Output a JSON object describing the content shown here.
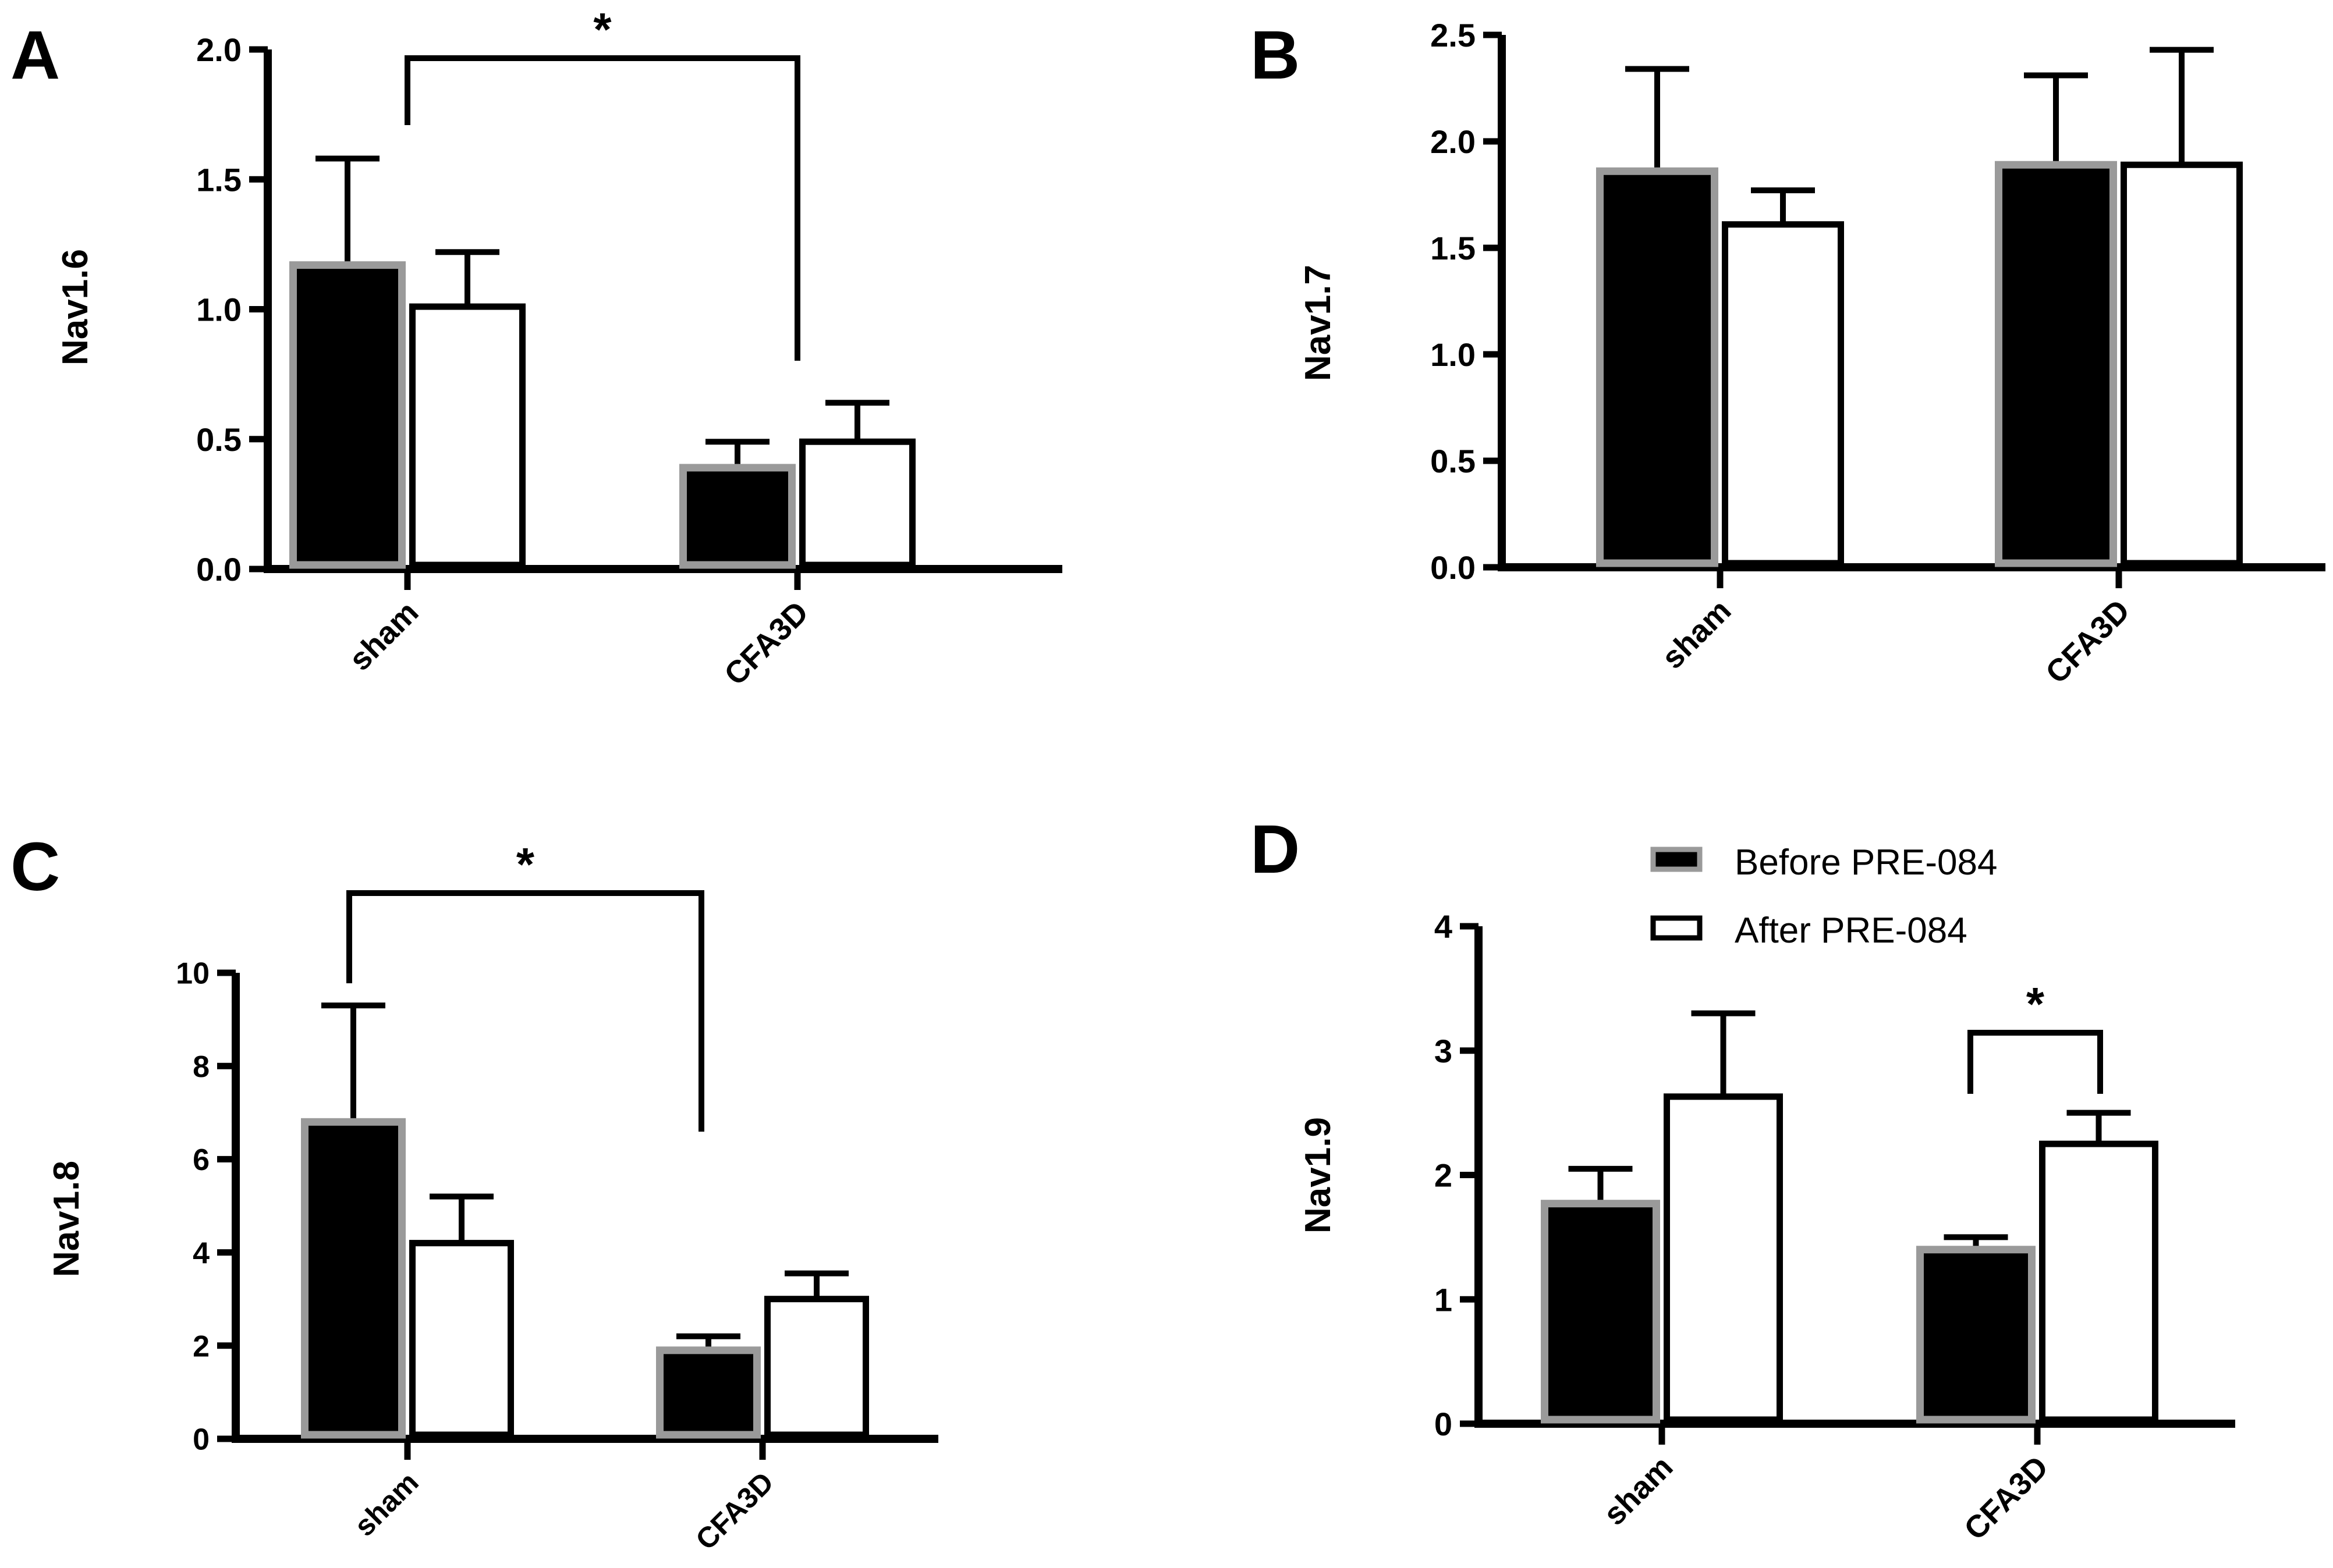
{
  "legend": {
    "before_label": "Before PRE-084",
    "after_label": "After PRE-084",
    "placement": "top, inside panel D"
  },
  "colors": {
    "before_fill": "#000000",
    "before_stroke": "#9a9a9a",
    "after_fill": "#ffffff",
    "after_stroke": "#000000",
    "axis": "#000000"
  },
  "chart_data": [
    {
      "panel": "A",
      "type": "bar",
      "ylabel": "Nav1.6",
      "categories": [
        "sham",
        "CFA3D"
      ],
      "ylim": [
        0,
        2.0
      ],
      "yticks": [
        "0.0",
        "0.5",
        "1.0",
        "1.5",
        "2.0"
      ],
      "series": [
        {
          "name": "Before PRE-084",
          "values": [
            1.17,
            0.39
          ],
          "errors": [
            0.41,
            0.1
          ]
        },
        {
          "name": "After PRE-084",
          "values": [
            1.01,
            0.49
          ],
          "errors": [
            0.21,
            0.15
          ]
        }
      ],
      "significance": [
        {
          "label": "*",
          "from": [
            "sham",
            "Before PRE-084"
          ],
          "to": [
            "CFA3D",
            "Before PRE-084"
          ]
        }
      ]
    },
    {
      "panel": "B",
      "type": "bar",
      "ylabel": "Nav1.7",
      "categories": [
        "sham",
        "CFA3D"
      ],
      "ylim": [
        0,
        2.5
      ],
      "yticks": [
        "0.0",
        "0.5",
        "1.0",
        "1.5",
        "2.0",
        "2.5"
      ],
      "series": [
        {
          "name": "Before PRE-084",
          "values": [
            1.86,
            1.89
          ],
          "errors": [
            0.48,
            0.42
          ]
        },
        {
          "name": "After PRE-084",
          "values": [
            1.61,
            1.89
          ],
          "errors": [
            0.16,
            0.54
          ]
        }
      ],
      "significance": []
    },
    {
      "panel": "C",
      "type": "bar",
      "ylabel": "Nav1.8",
      "categories": [
        "sham",
        "CFA3D"
      ],
      "ylim": [
        0,
        10
      ],
      "yticks": [
        "0",
        "2",
        "4",
        "6",
        "8",
        "10"
      ],
      "series": [
        {
          "name": "Before PRE-084",
          "values": [
            6.8,
            1.9
          ],
          "errors": [
            2.5,
            0.3
          ]
        },
        {
          "name": "After PRE-084",
          "values": [
            4.2,
            3.0
          ],
          "errors": [
            1.0,
            0.55
          ]
        }
      ],
      "significance": [
        {
          "label": "*",
          "from": [
            "sham",
            "Before PRE-084"
          ],
          "to": [
            "CFA3D",
            "Before PRE-084"
          ]
        }
      ]
    },
    {
      "panel": "D",
      "type": "bar",
      "ylabel": "Nav1.9",
      "categories": [
        "sham",
        "CFA3D"
      ],
      "ylim": [
        0,
        4
      ],
      "yticks": [
        "0",
        "1",
        "2",
        "3",
        "4"
      ],
      "series": [
        {
          "name": "Before PRE-084",
          "values": [
            1.77,
            1.4
          ],
          "errors": [
            0.28,
            0.1
          ]
        },
        {
          "name": "After PRE-084",
          "values": [
            2.63,
            2.25
          ],
          "errors": [
            0.67,
            0.25
          ]
        }
      ],
      "significance": [
        {
          "label": "*",
          "from": [
            "CFA3D",
            "Before PRE-084"
          ],
          "to": [
            "CFA3D",
            "After PRE-084"
          ]
        }
      ]
    }
  ]
}
